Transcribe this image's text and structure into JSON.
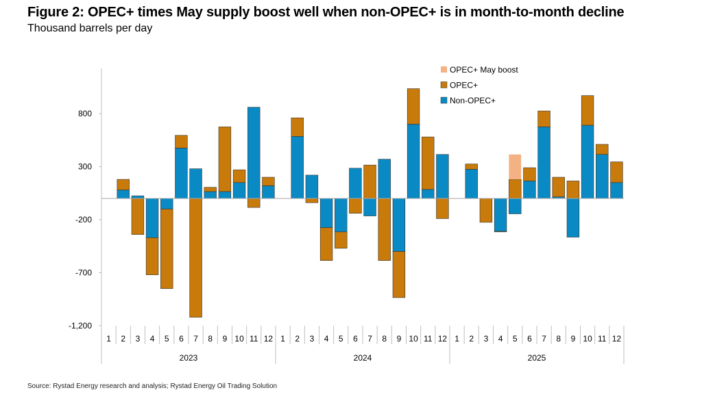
{
  "chart_data": {
    "type": "bar",
    "stacked": true,
    "title": "Figure 2: OPEC+ times May supply boost well when non-OPEC+ is in month-to-month decline",
    "subtitle": "Thousand barrels per day",
    "source": "Source: Rystad Energy research and analysis; Rystad Energy Oil Trading Solution",
    "ylim": [
      -1200,
      1200
    ],
    "yticks": [
      800,
      300,
      -200,
      -700,
      -1200
    ],
    "ytick_labels": [
      "800",
      "300",
      "-200",
      "-700",
      "-1,200"
    ],
    "years": [
      "2023",
      "2024",
      "2025"
    ],
    "months": [
      "1",
      "2",
      "3",
      "4",
      "5",
      "6",
      "7",
      "8",
      "9",
      "10",
      "11",
      "12"
    ],
    "legend_position": "top-right",
    "colors": {
      "non_opec": "#0A8AC4",
      "opec": "#C87A0A",
      "may_boost": "#F4B183"
    },
    "series": [
      {
        "name": "Non-OPEC+",
        "key": "non_opec",
        "values": [
          0,
          80,
          25,
          -370,
          -100,
          475,
          280,
          65,
          65,
          150,
          860,
          120,
          0,
          585,
          220,
          -275,
          -315,
          285,
          -165,
          370,
          -500,
          700,
          85,
          415,
          0,
          275,
          0,
          -310,
          -145,
          165,
          675,
          15,
          -365,
          690,
          415,
          150
        ]
      },
      {
        "name": "OPEC+",
        "key": "opec",
        "values": [
          0,
          100,
          -340,
          -350,
          -750,
          120,
          -1120,
          40,
          610,
          120,
          -85,
          80,
          0,
          175,
          -40,
          -310,
          -155,
          -140,
          315,
          -585,
          -435,
          335,
          495,
          -190,
          0,
          50,
          -225,
          -5,
          180,
          125,
          150,
          185,
          165,
          280,
          95,
          195
        ]
      },
      {
        "name": "OPEC+ May boost",
        "key": "may_boost",
        "values": [
          0,
          0,
          0,
          0,
          0,
          0,
          0,
          0,
          0,
          0,
          0,
          0,
          0,
          0,
          0,
          0,
          0,
          0,
          0,
          0,
          0,
          0,
          0,
          0,
          0,
          0,
          0,
          0,
          235,
          0,
          0,
          0,
          0,
          0,
          0,
          0
        ]
      }
    ],
    "legend_order": [
      "OPEC+ May boost",
      "OPEC+",
      "Non-OPEC+"
    ]
  }
}
